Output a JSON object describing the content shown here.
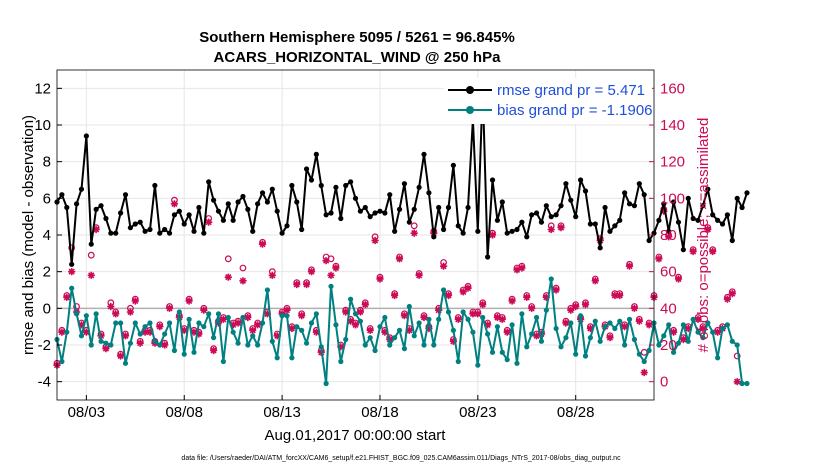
{
  "chart_data": {
    "type": "line",
    "title": "Southern Hemisphere 5095 / 5261 = 96.845%",
    "subtitle": "ACARS_HORIZONTAL_WIND @ 250 hPa",
    "xlabel": "Aug.01,2017 00:00:00 start",
    "ylabel_left": "rmse and bias (model - observation)",
    "ylabel_right": "# of obs: o=possible; ×=assimilated",
    "footnote": "data file: /Users/raeder/DAI/ATM_forcXX/CAM6_setup/f.e21.FHIST_BGC.f09_025.CAM6assim.011/Diags_NTrS_2017-08/obs_diag_output.nc",
    "xlim": [
      1.5,
      32.0
    ],
    "ylim_left": [
      -5,
      13
    ],
    "ylim_right": [
      -10,
      170
    ],
    "x_ticks": [
      3,
      8,
      13,
      18,
      23,
      28
    ],
    "x_tick_labels": [
      "08/03",
      "08/08",
      "08/13",
      "08/18",
      "08/23",
      "08/28"
    ],
    "y_ticks_left": [
      -4,
      -2,
      0,
      2,
      4,
      6,
      8,
      10,
      12
    ],
    "y_ticks_right": [
      0,
      20,
      40,
      60,
      80,
      100,
      120,
      140,
      160
    ],
    "colors": {
      "rmse": "#000000",
      "bias": "#008080",
      "obs": "#cc0a55",
      "legend_text": "#1f4fd8",
      "zero_line": "#b0b0b0"
    },
    "legend": {
      "position": "top-right",
      "entries": [
        "rmse grand pr = 5.471",
        "bias grand pr = -1.1906"
      ]
    },
    "series": [
      {
        "name": "rmse",
        "x_start": 1.5,
        "x_step": 0.25,
        "values": [
          5.8,
          6.2,
          5.5,
          2.4,
          5.7,
          6.5,
          9.4,
          3.5,
          5.4,
          5.6,
          4.9,
          4.1,
          4.1,
          5.2,
          6.2,
          4.4,
          4.6,
          4.7,
          4.2,
          4.3,
          6.7,
          4.1,
          4.3,
          4.1,
          5.1,
          5.3,
          4.6,
          5.1,
          4.2,
          5.5,
          4.1,
          6.9,
          5.9,
          5.3,
          4.8,
          5.7,
          4.8,
          5.8,
          6.1,
          5.4,
          4.2,
          5.7,
          6.3,
          5.8,
          6.5,
          5.3,
          4.1,
          4.5,
          6.7,
          5.8,
          4.3,
          7.6,
          7.0,
          8.4,
          6.7,
          5.1,
          5.2,
          6.6,
          4.9,
          6.7,
          6.9,
          6.0,
          5.3,
          5.5,
          5.0,
          5.2,
          5.3,
          5.2,
          6.2,
          4.2,
          5.4,
          6.8,
          4.7,
          5.4,
          6.6,
          8.4,
          6.3,
          3.9,
          5.5,
          4.3,
          5.5,
          7.8,
          4.5,
          4.1,
          5.5,
          10.3,
          4.2,
          12.0,
          2.8,
          7.0,
          4.8,
          5.8,
          4.1,
          4.2,
          4.3,
          4.7,
          3.9,
          5.1,
          5.2,
          4.7,
          5.6,
          5.0,
          5.1,
          5.6,
          6.8,
          5.9,
          5.0,
          7.0,
          6.4,
          4.6,
          4.6,
          3.3,
          5.5,
          4.2,
          4.5,
          4.8,
          6.3,
          5.7,
          5.6,
          6.8,
          6.2,
          3.7,
          4.1,
          4.8,
          5.7,
          4.2,
          5.8,
          4.7,
          3.2,
          6.0,
          4.9,
          4.8,
          5.6,
          6.5,
          5.1,
          4.8,
          4.6,
          5.1,
          3.7,
          6.0,
          5.5,
          6.3
        ]
      },
      {
        "name": "bias",
        "x_start": 1.5,
        "x_step": 0.25,
        "values": [
          -1.7,
          -2.9,
          -1.3,
          1.1,
          -0.3,
          -1.5,
          -0.4,
          -2.0,
          -0.3,
          -1.8,
          -1.9,
          -2.0,
          -0.8,
          -0.8,
          -3.0,
          -1.9,
          -0.8,
          -1.4,
          -1.0,
          -0.8,
          -1.8,
          -2.0,
          -1.4,
          -0.8,
          -2.3,
          -0.2,
          -2.5,
          -0.6,
          -2.4,
          -0.8,
          -1.0,
          -0.3,
          -1.6,
          -0.3,
          -2.9,
          -0.5,
          -1.3,
          -1.9,
          -0.5,
          -2.0,
          -1.5,
          -2.0,
          -0.8,
          1.0,
          -1.8,
          -2.7,
          -0.4,
          -0.4,
          -2.7,
          -1.0,
          -1.2,
          -1.9,
          -0.8,
          -0.3,
          -2.1,
          -4.1,
          1.2,
          -0.9,
          -2.9,
          -1.7,
          0.5,
          -0.3,
          -0.7,
          -2.0,
          -1.6,
          -2.3,
          -1.0,
          -0.5,
          -2.0,
          -1.6,
          -1.2,
          -2.2,
          0.1,
          -1.5,
          -0.8,
          -2.0,
          -0.6,
          -2.0,
          -0.6,
          1.0,
          -0.2,
          -1.2,
          -2.9,
          -0.2,
          -0.6,
          -1.3,
          -3.1,
          -0.5,
          -1.4,
          -2.4,
          -1.0,
          -2.4,
          -2.8,
          -0.9,
          -3.0,
          -0.3,
          -2.1,
          -1.4,
          -0.5,
          -1.8,
          -0.1,
          1.6,
          -1.1,
          -2.1,
          -1.6,
          -0.8,
          -2.5,
          -0.4,
          -2.6,
          -1.6,
          -0.7,
          -1.8,
          -1.0,
          -0.8,
          -1.1,
          -0.7,
          -2.0,
          -0.6,
          -1.7,
          -2.5,
          -2.9,
          -2.3,
          -0.8,
          -2.0,
          -1.5,
          -0.9,
          -2.4,
          -1.9,
          -0.9,
          -1.8,
          -0.6,
          -1.3,
          -1.6,
          -0.8,
          -1.3,
          -2.7,
          -1.1,
          -0.9,
          -1.8,
          -2.0,
          -4.1,
          -4.1
        ]
      },
      {
        "name": "obs_possible",
        "x_start": 1.5,
        "x_step": 0.25,
        "values": [
          10,
          28,
          47,
          73,
          41,
          32,
          28,
          69,
          84,
          26,
          19,
          43,
          38,
          15,
          26,
          40,
          45,
          22,
          28,
          28,
          22,
          31,
          21,
          41,
          99,
          36,
          29,
          45,
          28,
          27,
          40,
          89,
          18,
          33,
          35,
          67,
          32,
          33,
          62,
          36,
          29,
          32,
          76,
          38,
          60,
          26,
          38,
          40,
          30,
          54,
          37,
          54,
          61,
          28,
          17,
          68,
          67,
          63,
          20,
          39,
          34,
          32,
          39,
          43,
          29,
          79,
          57,
          28,
          24,
          48,
          68,
          37,
          29,
          85,
          59,
          36,
          30,
          82,
          40,
          65,
          48,
          23,
          35,
          50,
          52,
          38,
          38,
          43,
          32,
          81,
          36,
          35,
          28,
          45,
          62,
          63,
          47,
          41,
          26,
          27,
          47,
          85,
          51,
          85,
          33,
          40,
          42,
          35,
          43,
          30,
          56,
          78,
          31,
          25,
          48,
          48,
          31,
          64,
          41,
          34,
          16,
          32,
          47,
          68,
          94,
          80,
          28,
          57,
          24,
          30,
          72,
          35,
          30,
          84,
          72,
          28,
          30,
          46,
          49,
          14
        ]
      },
      {
        "name": "obs_assimilated",
        "x_start": 1.5,
        "x_step": 0.25,
        "values": [
          9,
          27,
          46,
          60,
          38,
          31,
          27,
          58,
          83,
          25,
          18,
          41,
          37,
          14,
          25,
          38,
          44,
          21,
          27,
          27,
          21,
          30,
          20,
          40,
          97,
          35,
          28,
          44,
          27,
          26,
          39,
          87,
          17,
          32,
          34,
          57,
          31,
          32,
          55,
          35,
          28,
          31,
          75,
          37,
          58,
          25,
          37,
          39,
          29,
          53,
          36,
          53,
          60,
          27,
          16,
          66,
          58,
          62,
          19,
          38,
          33,
          31,
          38,
          42,
          28,
          77,
          56,
          27,
          23,
          47,
          67,
          36,
          28,
          81,
          58,
          35,
          29,
          81,
          39,
          63,
          47,
          22,
          34,
          49,
          51,
          37,
          37,
          42,
          31,
          80,
          35,
          34,
          27,
          44,
          61,
          62,
          46,
          40,
          25,
          26,
          46,
          83,
          50,
          84,
          32,
          39,
          41,
          34,
          42,
          29,
          55,
          77,
          30,
          24,
          47,
          47,
          30,
          63,
          40,
          33,
          5,
          31,
          46,
          67,
          93,
          79,
          27,
          56,
          23,
          29,
          71,
          34,
          29,
          83,
          71,
          27,
          29,
          45,
          48,
          0
        ]
      }
    ]
  }
}
